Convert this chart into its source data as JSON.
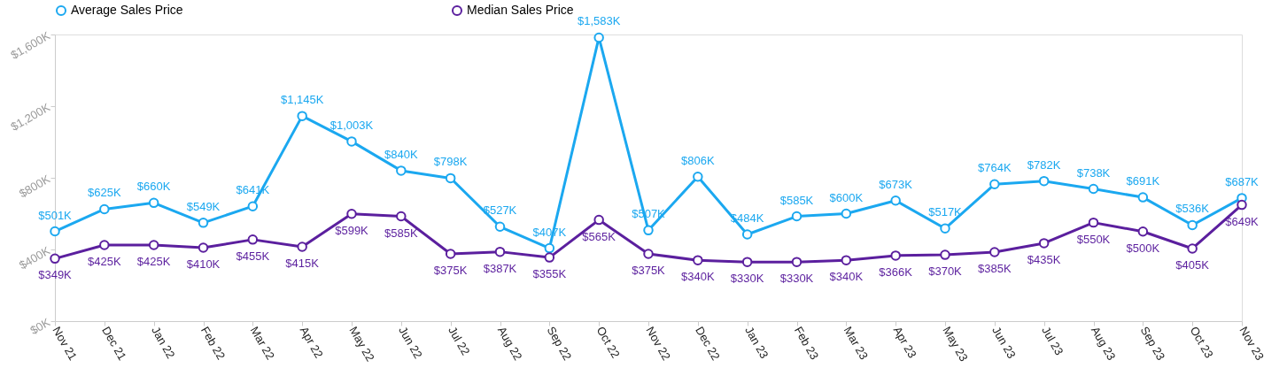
{
  "chart_data": {
    "type": "line",
    "categories": [
      "Nov 21",
      "Dec 21",
      "Jan 22",
      "Feb 22",
      "Mar 22",
      "Apr 22",
      "May 22",
      "Jun 22",
      "Jul 22",
      "Aug 22",
      "Sep 22",
      "Oct 22",
      "Nov 22",
      "Dec 22",
      "Jan 23",
      "Feb 23",
      "Mar 23",
      "Apr 23",
      "May 23",
      "Jun 23",
      "Jul 23",
      "Aug 23",
      "Sep 23",
      "Oct 23",
      "Nov 23"
    ],
    "series": [
      {
        "name": "Average Sales Price",
        "color": "#1ba8f0",
        "values": [
          501,
          625,
          660,
          549,
          641,
          1145,
          1003,
          840,
          798,
          527,
          407,
          1583,
          507,
          806,
          484,
          585,
          600,
          673,
          517,
          764,
          782,
          738,
          691,
          536,
          687
        ],
        "value_labels": [
          "$501K",
          "$625K",
          "$660K",
          "$549K",
          "$641K",
          "$1,145K",
          "$1,003K",
          "$840K",
          "$798K",
          "$527K",
          "$407K",
          "$1,583K",
          "$507K",
          "$806K",
          "$484K",
          "$585K",
          "$600K",
          "$673K",
          "$517K",
          "$764K",
          "$782K",
          "$738K",
          "$691K",
          "$536K",
          "$687K"
        ]
      },
      {
        "name": "Median Sales Price",
        "color": "#5b1f9e",
        "values": [
          349,
          425,
          425,
          410,
          455,
          415,
          599,
          585,
          375,
          387,
          355,
          565,
          375,
          340,
          330,
          330,
          340,
          366,
          370,
          385,
          435,
          550,
          500,
          405,
          649
        ],
        "value_labels": [
          "$349K",
          "$425K",
          "$425K",
          "$410K",
          "$455K",
          "$415K",
          "$599K",
          "$585K",
          "$375K",
          "$387K",
          "$355K",
          "$565K",
          "$375K",
          "$340K",
          "$330K",
          "$330K",
          "$340K",
          "$366K",
          "$370K",
          "$385K",
          "$435K",
          "$550K",
          "$500K",
          "$405K",
          "$649K"
        ]
      }
    ],
    "ylim": [
      0,
      1600
    ],
    "yticks": [
      {
        "value": 0,
        "label": "$0K"
      },
      {
        "value": 400,
        "label": "$400K"
      },
      {
        "value": 800,
        "label": "$800K"
      },
      {
        "value": 1200,
        "label": "$1,200K"
      },
      {
        "value": 1600,
        "label": "$1,600K"
      }
    ],
    "grid": false,
    "legend": "top",
    "marker": "circle",
    "line_style": "solid"
  }
}
